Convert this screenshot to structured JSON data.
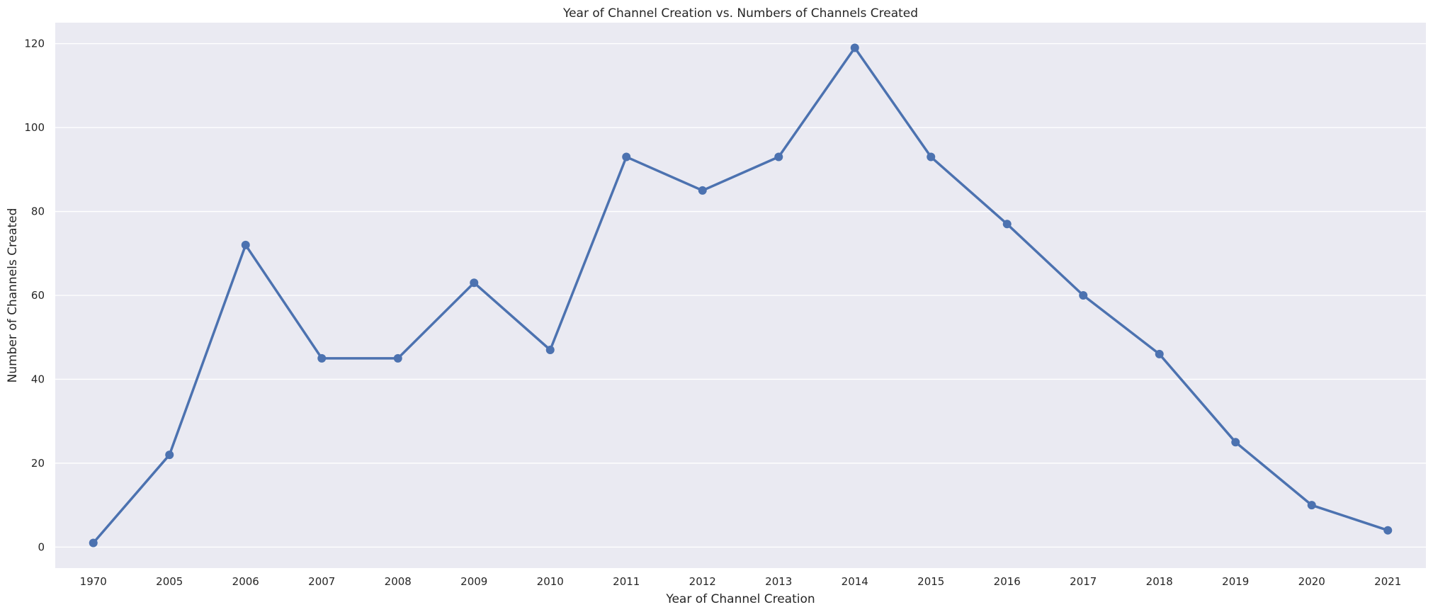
{
  "chart_data": {
    "type": "line",
    "title": "Year of Channel Creation vs. Numbers of Channels Created",
    "xlabel": "Year of Channel Creation",
    "ylabel": "Number of Channels Created",
    "categories": [
      "1970",
      "2005",
      "2006",
      "2007",
      "2008",
      "2009",
      "2010",
      "2011",
      "2012",
      "2013",
      "2014",
      "2015",
      "2016",
      "2017",
      "2018",
      "2019",
      "2020",
      "2021"
    ],
    "series": [
      {
        "values": [
          1,
          22,
          72,
          45,
          45,
          63,
          47,
          93,
          85,
          93,
          119,
          93,
          77,
          60,
          46,
          25,
          10,
          4
        ]
      }
    ],
    "yticks": [
      0,
      20,
      40,
      60,
      80,
      100,
      120
    ],
    "ylim": [
      -5,
      125
    ],
    "grid": true,
    "legend": "none",
    "colors": {
      "background": "#eaeaf2",
      "grid": "#ffffff",
      "line": "#4c72b0",
      "text": "#262626"
    }
  }
}
